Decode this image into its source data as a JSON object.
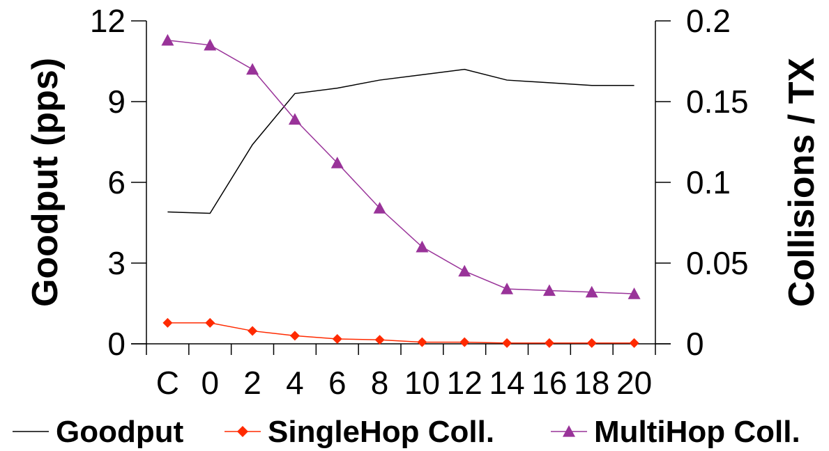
{
  "chart_data": {
    "type": "line",
    "categories": [
      "C",
      "0",
      "2",
      "4",
      "6",
      "8",
      "10",
      "12",
      "14",
      "16",
      "18",
      "20"
    ],
    "ylabel": "Goodput (pps)",
    "y2label": "Collisions / TX",
    "ylim": [
      0,
      12
    ],
    "y2lim": [
      0,
      0.2
    ],
    "yticks": [
      "0",
      "3",
      "6",
      "9",
      "12"
    ],
    "y2ticks": [
      "0",
      "0.05",
      "0.1",
      "0.15",
      "0.2"
    ],
    "legend_position": "bottom",
    "grid": false,
    "series": [
      {
        "name": "Goodput",
        "axis": "left",
        "marker": "none",
        "color": "#000000",
        "values": [
          4.9,
          4.85,
          7.4,
          9.3,
          9.5,
          9.8,
          10.0,
          10.2,
          9.8,
          9.7,
          9.6,
          9.6
        ]
      },
      {
        "name": "SingleHop Coll.",
        "axis": "right",
        "marker": "diamond",
        "color": "#FF2A00",
        "values": [
          0.013,
          0.013,
          0.008,
          0.005,
          0.003,
          0.0025,
          0.001,
          0.001,
          0.0005,
          0.0005,
          0.0005,
          0.0005
        ]
      },
      {
        "name": "MultiHop Coll.",
        "axis": "right",
        "marker": "triangle",
        "color": "#993399",
        "values": [
          0.188,
          0.185,
          0.17,
          0.139,
          0.112,
          0.084,
          0.06,
          0.045,
          0.034,
          0.033,
          0.032,
          0.031
        ]
      }
    ]
  }
}
